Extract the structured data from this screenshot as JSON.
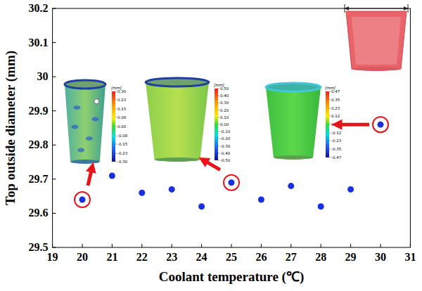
{
  "chart_data": {
    "type": "scatter",
    "x_label": "Coolant temperature (℃)",
    "y_label": "Top outside diameter (mm)",
    "x": [
      20,
      21,
      22,
      23,
      24,
      25,
      26,
      27,
      28,
      29,
      30
    ],
    "values": [
      29.64,
      29.71,
      29.66,
      29.67,
      29.62,
      29.69,
      29.64,
      29.68,
      29.62,
      29.67,
      29.86
    ],
    "color": "#1a2fe0",
    "marker": "circle",
    "xlim": [
      19,
      31
    ],
    "xticks": [
      19,
      20,
      21,
      22,
      23,
      24,
      25,
      26,
      27,
      28,
      29,
      30,
      31
    ],
    "ylim": [
      29.5,
      30.2
    ],
    "yticks": [
      29.5,
      29.6,
      29.7,
      29.8,
      29.9,
      30,
      30.1,
      30.2
    ],
    "grid": false,
    "insets": [
      {
        "x": 20,
        "colorbar": {
          "label": "[mm]",
          "clim": [
            -0.3,
            0.3
          ],
          "ticks": [
            {
              "value": 0.3,
              "label": "0.30"
            },
            {
              "value": 0.23,
              "label": "0.23"
            },
            {
              "value": 0.15,
              "label": "0.15"
            },
            {
              "value": 0.08,
              "label": "0.08"
            },
            {
              "value": 0,
              "label": "0.00"
            },
            {
              "value": -0.08,
              "label": "-0.08"
            },
            {
              "value": -0.15,
              "label": "-0.15"
            },
            {
              "value": -0.23,
              "label": "-0.23"
            },
            {
              "value": -0.3,
              "label": "-0.30"
            }
          ]
        }
      },
      {
        "x": 25,
        "colorbar": {
          "label": "[mm]",
          "clim": [
            -0.5,
            0.5
          ],
          "ticks": [
            {
              "value": 0.5,
              "label": "0.50"
            },
            {
              "value": 0.4,
              "label": "0.40"
            },
            {
              "value": 0.3,
              "label": "0.30"
            },
            {
              "value": 0.2,
              "label": "0.20"
            },
            {
              "value": 0.1,
              "label": "0.10"
            },
            {
              "value": 0,
              "label": "0.00"
            },
            {
              "value": -0.1,
              "label": "-0.10"
            },
            {
              "value": -0.2,
              "label": "-0.20"
            },
            {
              "value": -0.3,
              "label": "-0.30"
            },
            {
              "value": -0.4,
              "label": "-0.40"
            },
            {
              "value": -0.5,
              "label": "-0.50"
            }
          ]
        }
      },
      {
        "x": 30,
        "colorbar": {
          "label": "[mm]",
          "clim": [
            -0.47,
            0.47
          ],
          "ticks": [
            {
              "value": 0.47,
              "label": "0.47"
            },
            {
              "value": 0.35,
              "label": "0.35"
            },
            {
              "value": 0.23,
              "label": "0.23"
            },
            {
              "value": 0.12,
              "label": "0.12"
            },
            {
              "value": 0,
              "label": "0.00"
            },
            {
              "value": -0.12,
              "label": "-0.12"
            },
            {
              "value": -0.23,
              "label": "-0.23"
            },
            {
              "value": -0.35,
              "label": "-0.35"
            },
            {
              "value": -0.47,
              "label": "-0.47"
            }
          ]
        }
      }
    ]
  }
}
